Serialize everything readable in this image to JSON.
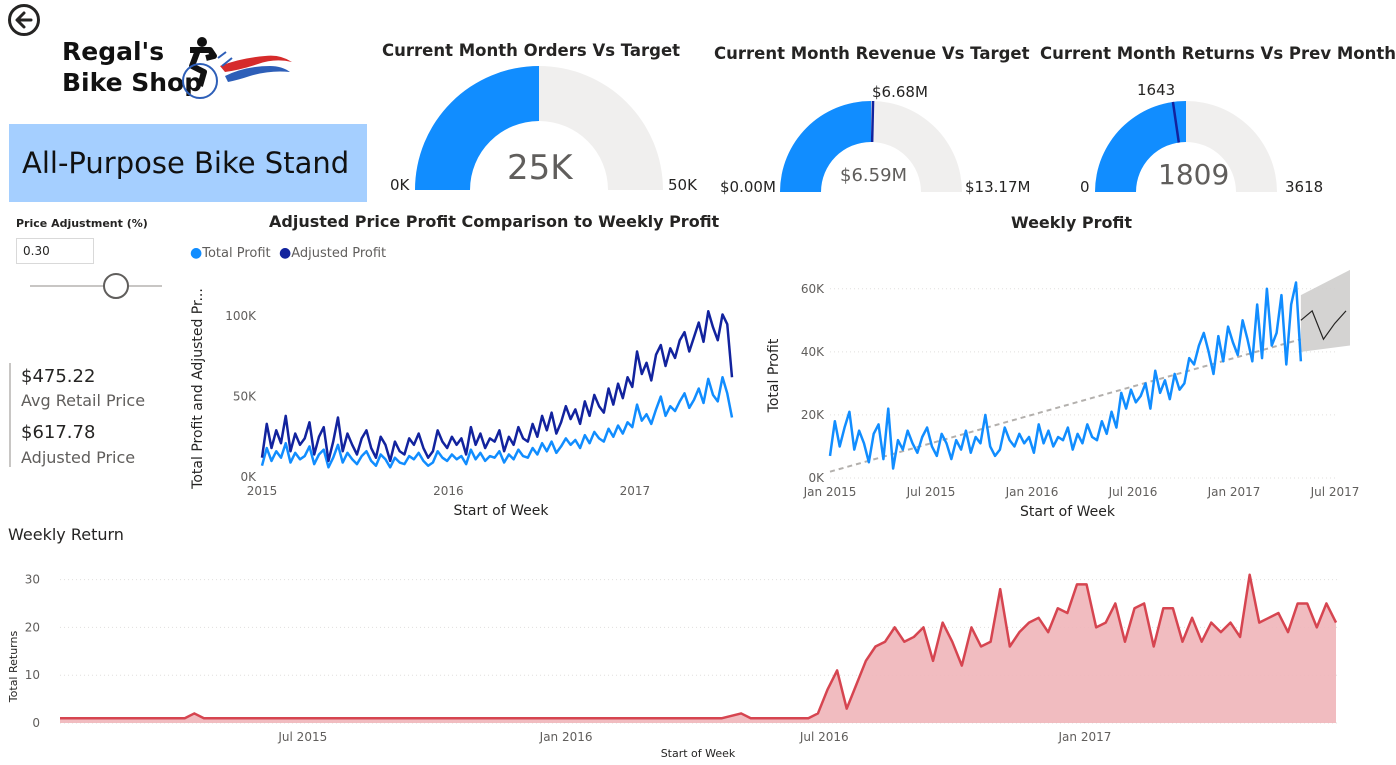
{
  "nav": {
    "back_icon": "back-arrow-icon"
  },
  "logo": {
    "line1": "Regal's",
    "line2": "Bike Shop"
  },
  "product": {
    "name": "All-Purpose Bike Stand"
  },
  "gauges": [
    {
      "title": "Current Month Orders Vs Target",
      "value_label": "25K",
      "min_label": "0K",
      "max_label": "50K",
      "value": 25000,
      "min": 0,
      "max": 50000,
      "target_label": ""
    },
    {
      "title": "Current Month Revenue Vs Target",
      "value_label": "$6.59M",
      "min_label": "$0.00M",
      "max_label": "$13.17M",
      "value": 6.59,
      "min": 0,
      "max": 13.17,
      "target_label": "$6.68M",
      "target": 6.68
    },
    {
      "title": "Current Month Returns Vs Prev Month",
      "value_label": "1809",
      "min_label": "0",
      "max_label": "3618",
      "value": 1809,
      "min": 0,
      "max": 3618,
      "target_label": "1643",
      "target": 1643
    }
  ],
  "slicer": {
    "title": "Price Adjustment (%)",
    "value": "0.30",
    "position": 0.6
  },
  "cards": [
    {
      "value": "$475.22",
      "label": "Avg Retail Price"
    },
    {
      "value": "$617.78",
      "label": "Adjusted Price"
    }
  ],
  "colors": {
    "gauge_fill": "#118dff",
    "gauge_bg": "#f0efee",
    "target_marker": "#12239e",
    "total_profit": "#118dff",
    "adjusted_profit": "#12239e",
    "returns_line": "#d64550",
    "returns_fill": "#efb5b9",
    "forecast": "#b3b0ad",
    "trend": "#b3b0ad"
  },
  "chart_data": [
    {
      "type": "line",
      "title": "Adjusted Price Profit Comparison to Weekly Profit",
      "xlabel": "Start of Week",
      "ylabel": "Total Profit and Adjusted Pr...",
      "x_ticks": [
        "2015",
        "2016",
        "2017"
      ],
      "y_ticks": [
        "0K",
        "50K",
        "100K"
      ],
      "ylim": [
        0,
        110000
      ],
      "legend": "top-left",
      "series": [
        {
          "name": "Total Profit",
          "values": [
            7000,
            18000,
            10000,
            16000,
            12000,
            21000,
            9000,
            15000,
            11000,
            13000,
            19000,
            8000,
            14000,
            17000,
            6000,
            12000,
            20000,
            9000,
            15000,
            11000,
            8000,
            13000,
            16000,
            10000,
            7000,
            14000,
            11000,
            6000,
            12000,
            9000,
            8000,
            13000,
            11000,
            15000,
            10000,
            7000,
            9000,
            16000,
            12000,
            10000,
            14000,
            11000,
            13000,
            8000,
            17000,
            11000,
            15000,
            10000,
            13000,
            12000,
            16000,
            9000,
            14000,
            11000,
            17000,
            13000,
            12000,
            18000,
            14000,
            21000,
            16000,
            22000,
            15000,
            19000,
            24000,
            20000,
            23000,
            18000,
            26000,
            21000,
            28000,
            24000,
            22000,
            30000,
            25000,
            32000,
            27000,
            34000,
            31000,
            45000,
            35000,
            39000,
            33000,
            42000,
            50000,
            38000,
            44000,
            41000,
            47000,
            52000,
            43000,
            48000,
            55000,
            46000,
            61000,
            51000,
            47000,
            62000,
            52000,
            37000
          ]
        },
        {
          "name": "Adjusted Profit",
          "values": [
            12000,
            33000,
            18000,
            29000,
            21000,
            38000,
            16000,
            27000,
            20000,
            24000,
            34000,
            14000,
            25000,
            31000,
            10000,
            22000,
            37000,
            16000,
            27000,
            20000,
            14000,
            24000,
            29000,
            18000,
            12000,
            25000,
            20000,
            10000,
            22000,
            16000,
            14000,
            24000,
            20000,
            27000,
            18000,
            12000,
            16000,
            29000,
            22000,
            18000,
            25000,
            20000,
            24000,
            14000,
            31000,
            20000,
            27000,
            18000,
            24000,
            22000,
            29000,
            16000,
            25000,
            20000,
            31000,
            24000,
            22000,
            33000,
            25000,
            38000,
            29000,
            40000,
            27000,
            34000,
            44000,
            36000,
            42000,
            33000,
            47000,
            38000,
            51000,
            44000,
            40000,
            55000,
            45000,
            58000,
            49000,
            62000,
            56000,
            78000,
            64000,
            71000,
            60000,
            76000,
            82000,
            69000,
            80000,
            74000,
            85000,
            90000,
            78000,
            87000,
            96000,
            84000,
            103000,
            93000,
            85000,
            101000,
            95000,
            62000
          ]
        }
      ]
    },
    {
      "type": "line",
      "title": "Weekly Profit",
      "xlabel": "Start of Week",
      "ylabel": "Total Profit",
      "x_ticks": [
        "Jan 2015",
        "Jul 2015",
        "Jan 2016",
        "Jul 2016",
        "Jan 2017",
        "Jul 2017"
      ],
      "y_ticks": [
        "0K",
        "20K",
        "40K",
        "60K"
      ],
      "ylim": [
        0,
        65000
      ],
      "series": [
        {
          "name": "Total Profit",
          "values": [
            7000,
            18000,
            10000,
            16000,
            21000,
            9000,
            15000,
            11000,
            5000,
            14000,
            17000,
            6000,
            22000,
            3000,
            12000,
            9000,
            15000,
            11000,
            8000,
            13000,
            16000,
            10000,
            7000,
            14000,
            11000,
            6000,
            12000,
            9000,
            15000,
            8000,
            13000,
            11000,
            20000,
            10000,
            7000,
            9000,
            16000,
            12000,
            10000,
            14000,
            11000,
            13000,
            8000,
            17000,
            11000,
            15000,
            10000,
            13000,
            12000,
            16000,
            9000,
            14000,
            11000,
            17000,
            13000,
            12000,
            18000,
            14000,
            21000,
            16000,
            27000,
            22000,
            28000,
            24000,
            26000,
            30000,
            22000,
            34000,
            27000,
            31000,
            25000,
            33000,
            28000,
            30000,
            38000,
            36000,
            42000,
            46000,
            40000,
            33000,
            45000,
            37000,
            48000,
            43000,
            39000,
            50000,
            44000,
            37000,
            55000,
            38000,
            60000,
            42000,
            46000,
            58000,
            36000,
            55000,
            62000,
            37000
          ]
        },
        {
          "name": "Forecast",
          "values": [
            50000,
            53000,
            44000,
            49000,
            53000
          ]
        },
        {
          "name": "Trend",
          "values": [
            2000,
            44000
          ]
        }
      ]
    },
    {
      "type": "area",
      "title": "Weekly Return",
      "xlabel": "Start of Week",
      "ylabel": "Total Returns",
      "x_ticks": [
        "Jul 2015",
        "Jan 2016",
        "Jul 2016",
        "Jan 2017"
      ],
      "y_ticks": [
        "0",
        "10",
        "20",
        "30"
      ],
      "ylim": [
        0,
        32
      ],
      "series": [
        {
          "name": "Total Returns",
          "values": [
            1,
            1,
            1,
            1,
            1,
            1,
            1,
            1,
            1,
            1,
            1,
            1,
            1,
            1,
            2,
            1,
            1,
            1,
            1,
            1,
            1,
            1,
            1,
            1,
            1,
            1,
            1,
            1,
            1,
            1,
            1,
            1,
            1,
            1,
            1,
            1,
            1,
            1,
            1,
            1,
            1,
            1,
            1,
            1,
            1,
            1,
            1,
            1,
            1,
            1,
            1,
            1,
            1,
            1,
            1,
            1,
            1,
            1,
            1,
            1,
            1,
            1,
            1,
            1,
            1,
            1,
            1,
            1,
            1,
            1,
            1.5,
            2,
            1,
            1,
            1,
            1,
            1,
            1,
            1,
            2,
            7,
            11,
            3,
            8,
            13,
            16,
            17,
            20,
            17,
            18,
            20,
            13,
            21,
            17,
            12,
            20,
            16,
            17,
            28,
            16,
            19,
            21,
            22,
            19,
            24,
            23,
            29,
            29,
            20,
            21,
            25,
            17,
            24,
            25,
            16,
            24,
            24,
            17,
            22,
            17,
            21,
            19,
            21,
            18,
            31,
            21,
            22,
            23,
            19,
            25,
            25,
            20,
            25,
            21
          ]
        }
      ]
    }
  ]
}
